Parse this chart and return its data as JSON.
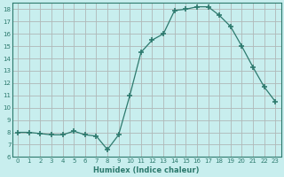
{
  "x": [
    0,
    1,
    2,
    3,
    4,
    5,
    6,
    7,
    8,
    9,
    10,
    11,
    12,
    13,
    14,
    15,
    16,
    17,
    18,
    19,
    20,
    21,
    22,
    23
  ],
  "y": [
    8.0,
    8.0,
    7.9,
    7.8,
    7.8,
    8.1,
    7.8,
    7.7,
    6.6,
    7.8,
    11.0,
    14.5,
    15.5,
    16.0,
    17.9,
    18.0,
    18.2,
    18.2,
    17.5,
    16.6,
    15.0,
    13.3,
    11.7,
    10.5
  ],
  "line_color": "#2d7a6e",
  "marker": "+",
  "marker_size": 4,
  "bg_color": "#c8eeee",
  "grid_color": "#b0b8b8",
  "tick_color": "#2d7a6e",
  "xlabel": "Humidex (Indice chaleur)",
  "xlim": [
    -0.5,
    23.5
  ],
  "ylim": [
    6,
    18.5
  ],
  "yticks": [
    6,
    7,
    8,
    9,
    10,
    11,
    12,
    13,
    14,
    15,
    16,
    17,
    18
  ],
  "xticks": [
    0,
    1,
    2,
    3,
    4,
    5,
    6,
    7,
    8,
    9,
    10,
    11,
    12,
    13,
    14,
    15,
    16,
    17,
    18,
    19,
    20,
    21,
    22,
    23
  ]
}
